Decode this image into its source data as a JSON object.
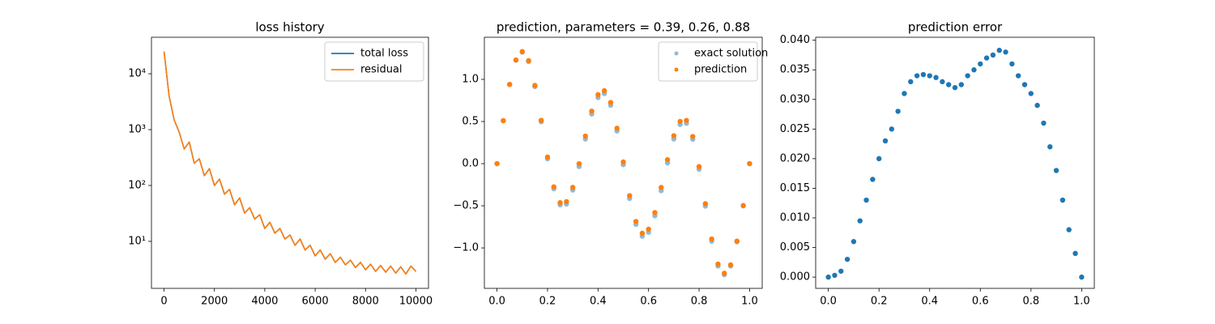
{
  "chart_data": [
    {
      "type": "line",
      "title": "loss history",
      "log_y": true,
      "legend": "upper right",
      "x": [
        0,
        200,
        400,
        600,
        800,
        1000,
        1200,
        1400,
        1600,
        1800,
        2000,
        2200,
        2400,
        2600,
        2800,
        3000,
        3200,
        3400,
        3600,
        3800,
        4000,
        4200,
        4400,
        4600,
        4800,
        5000,
        5200,
        5400,
        5600,
        5800,
        6000,
        6200,
        6400,
        6600,
        6800,
        7000,
        7200,
        7400,
        7600,
        7800,
        8000,
        8200,
        8400,
        8600,
        8800,
        9000,
        9200,
        9400,
        9600,
        9800,
        10000
      ],
      "series": [
        {
          "name": "total loss",
          "color": "#1f77b4",
          "values": [
            25000,
            4000,
            1500,
            900,
            450,
            600,
            250,
            300,
            150,
            200,
            100,
            130,
            70,
            85,
            45,
            60,
            32,
            40,
            25,
            30,
            17,
            22,
            14,
            17,
            11,
            13,
            8.5,
            11,
            7,
            8.5,
            5.5,
            7,
            4.8,
            6,
            4.2,
            5.2,
            3.8,
            4.6,
            3.4,
            4.2,
            3.1,
            3.9,
            2.9,
            3.7,
            2.8,
            3.6,
            2.7,
            3.5,
            2.6,
            3.6,
            2.9
          ]
        },
        {
          "name": "residual",
          "color": "#ff7f0e",
          "values": [
            25000,
            4000,
            1500,
            900,
            450,
            600,
            250,
            300,
            150,
            200,
            100,
            130,
            70,
            85,
            45,
            60,
            32,
            40,
            25,
            30,
            17,
            22,
            14,
            17,
            11,
            13,
            8.5,
            11,
            7,
            8.5,
            5.5,
            7,
            4.8,
            6,
            4.2,
            5.2,
            3.8,
            4.6,
            3.4,
            4.2,
            3.1,
            3.9,
            2.9,
            3.7,
            2.8,
            3.6,
            2.7,
            3.5,
            2.6,
            3.6,
            2.9
          ]
        }
      ],
      "xlim": [
        -500,
        10500
      ],
      "xticks": [
        0,
        2000,
        4000,
        6000,
        8000,
        10000
      ],
      "ylim": [
        1.44,
        45000
      ],
      "yticks": [
        {
          "value": 10,
          "label": "10¹"
        },
        {
          "value": 100,
          "label": "10²"
        },
        {
          "value": 1000,
          "label": "10³"
        },
        {
          "value": 10000,
          "label": "10⁴"
        }
      ]
    },
    {
      "type": "scatter",
      "title": "prediction, parameters = 0.39, 0.26, 0.88",
      "legend": "upper right",
      "x": [
        0,
        0.025,
        0.05,
        0.075,
        0.1,
        0.125,
        0.15,
        0.175,
        0.2,
        0.225,
        0.25,
        0.275,
        0.3,
        0.325,
        0.35,
        0.375,
        0.4,
        0.425,
        0.45,
        0.475,
        0.5,
        0.525,
        0.55,
        0.575,
        0.6,
        0.625,
        0.65,
        0.675,
        0.7,
        0.725,
        0.75,
        0.775,
        0.8,
        0.825,
        0.85,
        0.875,
        0.9,
        0.925,
        0.95,
        0.975,
        1.0
      ],
      "series": [
        {
          "name": "exact solution",
          "color": "#1f77b4",
          "alpha": 0.5,
          "values": [
            0,
            0.5097,
            0.939,
            1.227,
            1.324,
            1.2135,
            0.915,
            0.4975,
            0.058,
            -0.298,
            -0.488,
            -0.479,
            -0.313,
            -0.034,
            0.293,
            0.5888,
            0.785,
            0.8323,
            0.693,
            0.3875,
            -0.012,
            -0.4125,
            -0.72,
            -0.861,
            -0.814,
            -0.618,
            -0.3205,
            0.0087,
            0.293,
            0.465,
            0.479,
            0.2895,
            -0.066,
            -0.504,
            -0.92,
            -1.214,
            -1.318,
            -1.214,
            -0.927,
            -0.501,
            0
          ]
        },
        {
          "name": "prediction",
          "color": "#ff7f0e",
          "alpha": 1,
          "values": [
            0,
            0.51,
            0.94,
            1.23,
            1.33,
            1.223,
            0.928,
            0.514,
            0.078,
            -0.275,
            -0.463,
            -0.451,
            -0.282,
            -0.001,
            0.327,
            0.623,
            0.819,
            0.866,
            0.726,
            0.42,
            0.02,
            -0.38,
            -0.686,
            -0.826,
            -0.778,
            -0.581,
            -0.283,
            0.047,
            0.331,
            0.501,
            0.513,
            0.322,
            -0.035,
            -0.475,
            -0.894,
            -1.192,
            -1.3,
            -1.201,
            -0.919,
            -0.497,
            0
          ]
        }
      ],
      "xlim": [
        -0.05,
        1.05
      ],
      "xticks": [
        {
          "value": 0,
          "label": "0.0"
        },
        0.2,
        0.4,
        0.6,
        0.8,
        {
          "value": 1,
          "label": "1.0"
        }
      ],
      "ylim": [
        -1.48,
        1.5
      ],
      "yticks": [
        {
          "value": -1,
          "label": "−1.0"
        },
        {
          "value": -0.5,
          "label": "−0.5"
        },
        {
          "value": 0,
          "label": "0.0"
        },
        0.5,
        {
          "value": 1,
          "label": "1.0"
        }
      ]
    },
    {
      "type": "scatter",
      "title": "prediction error",
      "x": [
        0,
        0.025,
        0.05,
        0.075,
        0.1,
        0.125,
        0.15,
        0.175,
        0.2,
        0.225,
        0.25,
        0.275,
        0.3,
        0.325,
        0.35,
        0.375,
        0.4,
        0.425,
        0.45,
        0.475,
        0.5,
        0.525,
        0.55,
        0.575,
        0.6,
        0.625,
        0.65,
        0.675,
        0.7,
        0.725,
        0.75,
        0.775,
        0.8,
        0.825,
        0.85,
        0.875,
        0.9,
        0.925,
        0.95,
        0.975,
        1.0
      ],
      "series": [
        {
          "color": "#1f77b4",
          "alpha": 1,
          "values": [
            0,
            0.0003,
            0.001,
            0.003,
            0.006,
            0.0095,
            0.013,
            0.0165,
            0.02,
            0.023,
            0.025,
            0.028,
            0.031,
            0.033,
            0.034,
            0.0342,
            0.034,
            0.0337,
            0.033,
            0.0325,
            0.032,
            0.0325,
            0.034,
            0.035,
            0.036,
            0.037,
            0.0375,
            0.0383,
            0.038,
            0.036,
            0.034,
            0.0325,
            0.031,
            0.029,
            0.026,
            0.022,
            0.018,
            0.013,
            0.008,
            0.004,
            0
          ]
        }
      ],
      "xlim": [
        -0.05,
        1.05
      ],
      "xticks": [
        {
          "value": 0,
          "label": "0.0"
        },
        0.2,
        0.4,
        0.6,
        0.8,
        {
          "value": 1,
          "label": "1.0"
        }
      ],
      "ylim": [
        -0.0019,
        0.0405
      ],
      "yticks": [
        {
          "value": 0,
          "label": "0.000"
        },
        {
          "value": 0.005,
          "label": "0.005"
        },
        {
          "value": 0.01,
          "label": "0.010"
        },
        0.015,
        {
          "value": 0.02,
          "label": "0.020"
        },
        0.025,
        {
          "value": 0.03,
          "label": "0.030"
        },
        0.035,
        {
          "value": 0.04,
          "label": "0.040"
        }
      ]
    }
  ]
}
